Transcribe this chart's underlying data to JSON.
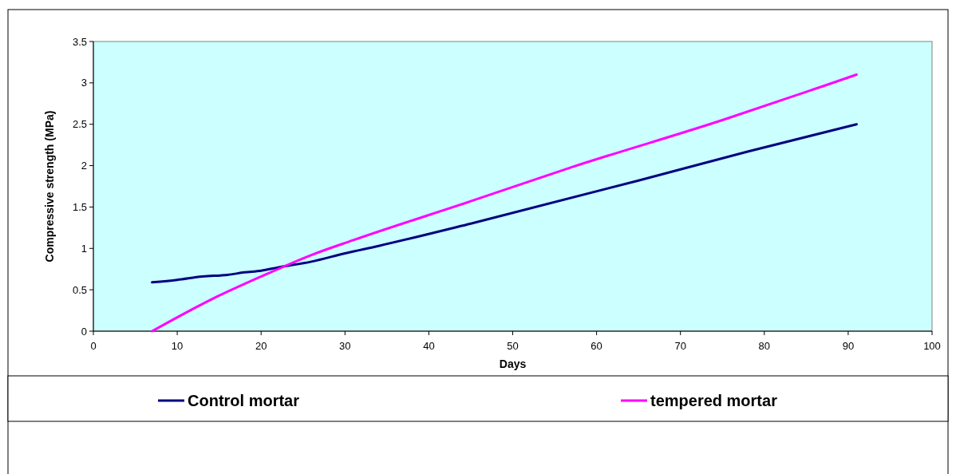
{
  "chart_data": {
    "type": "line",
    "xlabel": "Days",
    "ylabel": "Compressive strength (MPa)",
    "xlim": [
      0,
      100
    ],
    "xticks": [
      0,
      10,
      20,
      30,
      40,
      50,
      60,
      70,
      80,
      90,
      100
    ],
    "ylim": [
      0,
      3.5
    ],
    "yticks": [
      0,
      0.5,
      1,
      1.5,
      2,
      2.5,
      3,
      3.5
    ],
    "grid": false,
    "legend": "bottom",
    "marker": "none",
    "line_style": "solid",
    "series": [
      {
        "name": "Control mortar",
        "color": "#000080",
        "x": [
          7,
          10,
          13,
          16,
          18,
          20,
          22,
          26,
          30,
          34,
          45,
          65,
          78,
          91
        ],
        "values": [
          0.59,
          0.62,
          0.66,
          0.68,
          0.71,
          0.73,
          0.77,
          0.84,
          0.94,
          1.03,
          1.3,
          1.82,
          2.17,
          2.5
        ]
      },
      {
        "name": "tempered mortar",
        "color": "#ff00ff",
        "x": [
          7,
          14,
          20,
          26,
          31,
          45,
          57,
          75,
          87,
          91
        ],
        "values": [
          0,
          0.38,
          0.66,
          0.92,
          1.1,
          1.57,
          1.98,
          2.55,
          2.96,
          3.1
        ]
      }
    ]
  }
}
